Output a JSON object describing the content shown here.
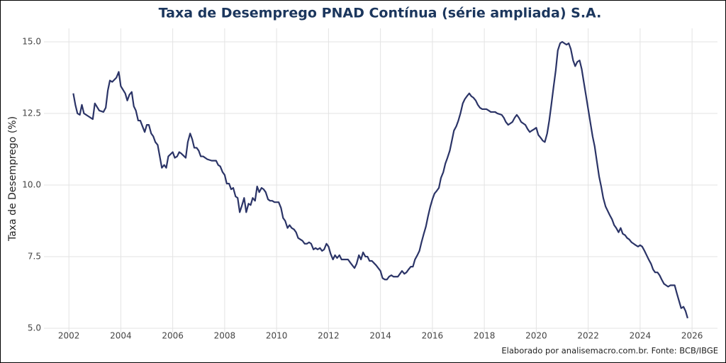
{
  "chart_data": {
    "type": "line",
    "title": "Taxa de Desemprego PNAD Contínua (série ampliada) S.A.",
    "y_label": "Taxa de Desemprego (%)",
    "caption": "Elaborado por analisemacro.com.br. Fonte: BCB/IBGE",
    "x": [
      2002.17,
      2002.25,
      2002.33,
      2002.42,
      2002.5,
      2002.58,
      2002.75,
      2002.92,
      2003.0,
      2003.17,
      2003.33,
      2003.42,
      2003.5,
      2003.58,
      2003.67,
      2003.83,
      2003.92,
      2004.0,
      2004.17,
      2004.25,
      2004.33,
      2004.42,
      2004.5,
      2004.58,
      2004.67,
      2004.75,
      2004.92,
      2005.0,
      2005.08,
      2005.17,
      2005.25,
      2005.33,
      2005.42,
      2005.5,
      2005.58,
      2005.67,
      2005.75,
      2005.83,
      2006.0,
      2006.08,
      2006.17,
      2006.25,
      2006.33,
      2006.5,
      2006.58,
      2006.67,
      2006.75,
      2006.83,
      2006.92,
      2007.0,
      2007.08,
      2007.17,
      2007.33,
      2007.5,
      2007.67,
      2007.75,
      2007.83,
      2007.92,
      2008.0,
      2008.08,
      2008.17,
      2008.25,
      2008.33,
      2008.42,
      2008.5,
      2008.58,
      2008.67,
      2008.75,
      2008.83,
      2008.92,
      2009.0,
      2009.08,
      2009.17,
      2009.25,
      2009.33,
      2009.42,
      2009.5,
      2009.58,
      2009.67,
      2009.75,
      2009.83,
      2009.92,
      2010.0,
      2010.08,
      2010.17,
      2010.25,
      2010.33,
      2010.42,
      2010.5,
      2010.58,
      2010.67,
      2010.75,
      2010.83,
      2011.0,
      2011.08,
      2011.17,
      2011.25,
      2011.33,
      2011.42,
      2011.5,
      2011.58,
      2011.67,
      2011.75,
      2011.83,
      2011.92,
      2012.0,
      2012.08,
      2012.17,
      2012.25,
      2012.33,
      2012.42,
      2012.5,
      2012.67,
      2012.75,
      2012.83,
      2013.0,
      2013.08,
      2013.17,
      2013.25,
      2013.33,
      2013.42,
      2013.5,
      2013.58,
      2013.67,
      2013.83,
      2014.0,
      2014.08,
      2014.17,
      2014.25,
      2014.33,
      2014.42,
      2014.5,
      2014.67,
      2014.75,
      2014.83,
      2014.92,
      2015.0,
      2015.08,
      2015.17,
      2015.25,
      2015.33,
      2015.42,
      2015.5,
      2015.58,
      2015.67,
      2015.75,
      2015.83,
      2015.92,
      2016.0,
      2016.08,
      2016.17,
      2016.25,
      2016.33,
      2016.42,
      2016.5,
      2016.58,
      2016.67,
      2016.75,
      2016.83,
      2016.92,
      2017.0,
      2017.08,
      2017.17,
      2017.25,
      2017.33,
      2017.42,
      2017.5,
      2017.58,
      2017.67,
      2017.75,
      2017.83,
      2017.92,
      2018.0,
      2018.08,
      2018.17,
      2018.25,
      2018.33,
      2018.42,
      2018.5,
      2018.67,
      2018.75,
      2018.83,
      2018.92,
      2019.0,
      2019.08,
      2019.17,
      2019.25,
      2019.33,
      2019.42,
      2019.5,
      2019.58,
      2019.67,
      2019.75,
      2019.83,
      2019.92,
      2020.0,
      2020.08,
      2020.17,
      2020.25,
      2020.33,
      2020.42,
      2020.5,
      2020.58,
      2020.67,
      2020.75,
      2020.83,
      2020.92,
      2021.0,
      2021.08,
      2021.17,
      2021.25,
      2021.33,
      2021.42,
      2021.5,
      2021.58,
      2021.67,
      2021.75,
      2021.83,
      2021.92,
      2022.0,
      2022.08,
      2022.17,
      2022.25,
      2022.33,
      2022.42,
      2022.5,
      2022.58,
      2022.67,
      2022.75,
      2022.83,
      2022.92,
      2023.0,
      2023.08,
      2023.17,
      2023.25,
      2023.33,
      2023.42,
      2023.5,
      2023.58,
      2023.67,
      2023.75,
      2023.83,
      2023.92,
      2024.0,
      2024.08,
      2024.17,
      2024.25,
      2024.33,
      2024.42,
      2024.5,
      2024.58,
      2024.67,
      2024.75,
      2024.83,
      2024.92,
      2025.0,
      2025.08,
      2025.17,
      2025.25,
      2025.33,
      2025.42,
      2025.5,
      2025.58,
      2025.67,
      2025.75,
      2025.83
    ],
    "series": [
      {
        "color": "#2b3467",
        "values": [
          13.2,
          12.8,
          12.5,
          12.45,
          12.8,
          12.5,
          12.4,
          12.3,
          12.85,
          12.6,
          12.55,
          12.7,
          13.3,
          13.65,
          13.6,
          13.75,
          13.95,
          13.45,
          13.2,
          12.95,
          13.15,
          13.25,
          12.75,
          12.6,
          12.25,
          12.25,
          11.85,
          12.1,
          12.1,
          11.8,
          11.7,
          11.5,
          11.4,
          11.0,
          10.6,
          10.7,
          10.6,
          11.0,
          11.15,
          10.95,
          11.0,
          11.15,
          11.1,
          10.95,
          11.5,
          11.8,
          11.6,
          11.3,
          11.3,
          11.2,
          11.0,
          11.0,
          10.9,
          10.85,
          10.85,
          10.7,
          10.65,
          10.45,
          10.35,
          10.05,
          10.05,
          9.85,
          9.9,
          9.6,
          9.55,
          9.05,
          9.3,
          9.55,
          9.05,
          9.35,
          9.3,
          9.55,
          9.45,
          9.95,
          9.75,
          9.9,
          9.85,
          9.75,
          9.5,
          9.45,
          9.45,
          9.4,
          9.4,
          9.4,
          9.2,
          8.85,
          8.75,
          8.5,
          8.6,
          8.5,
          8.45,
          8.35,
          8.15,
          8.05,
          7.95,
          7.95,
          8.0,
          7.95,
          7.75,
          7.8,
          7.75,
          7.8,
          7.7,
          7.75,
          7.95,
          7.85,
          7.6,
          7.4,
          7.55,
          7.45,
          7.55,
          7.4,
          7.4,
          7.4,
          7.3,
          7.1,
          7.25,
          7.55,
          7.4,
          7.65,
          7.5,
          7.5,
          7.35,
          7.35,
          7.2,
          7.0,
          6.75,
          6.7,
          6.7,
          6.8,
          6.85,
          6.8,
          6.8,
          6.9,
          7.0,
          6.9,
          6.95,
          7.05,
          7.15,
          7.15,
          7.4,
          7.55,
          7.7,
          8.0,
          8.3,
          8.55,
          8.9,
          9.25,
          9.5,
          9.7,
          9.8,
          9.9,
          10.25,
          10.45,
          10.75,
          10.95,
          11.2,
          11.55,
          11.9,
          12.05,
          12.25,
          12.5,
          12.85,
          13.0,
          13.1,
          13.2,
          13.1,
          13.05,
          12.95,
          12.8,
          12.7,
          12.65,
          12.65,
          12.65,
          12.6,
          12.55,
          12.55,
          12.55,
          12.5,
          12.45,
          12.35,
          12.2,
          12.1,
          12.15,
          12.2,
          12.35,
          12.45,
          12.35,
          12.2,
          12.15,
          12.1,
          11.95,
          11.85,
          11.9,
          11.95,
          12.0,
          11.75,
          11.65,
          11.55,
          11.5,
          11.8,
          12.25,
          12.8,
          13.45,
          14.0,
          14.7,
          14.95,
          15.0,
          14.95,
          14.9,
          14.95,
          14.75,
          14.35,
          14.15,
          14.3,
          14.35,
          14.05,
          13.6,
          13.1,
          12.65,
          12.2,
          11.7,
          11.35,
          10.85,
          10.3,
          9.95,
          9.55,
          9.25,
          9.1,
          8.95,
          8.8,
          8.6,
          8.5,
          8.35,
          8.5,
          8.3,
          8.25,
          8.15,
          8.1,
          8.0,
          7.95,
          7.9,
          7.85,
          7.9,
          7.85,
          7.7,
          7.55,
          7.4,
          7.25,
          7.05,
          6.95,
          6.95,
          6.85,
          6.7,
          6.55,
          6.5,
          6.45,
          6.5,
          6.5,
          6.5,
          6.2,
          5.95,
          5.7,
          5.75,
          5.6,
          5.35
        ]
      }
    ],
    "xlim": [
      2001.04,
      2026.98
    ],
    "xticks": [
      2002,
      2004,
      2006,
      2008,
      2010,
      2012,
      2014,
      2016,
      2018,
      2020,
      2022,
      2024,
      2026
    ],
    "ylim": [
      4.85,
      15.47
    ],
    "yticks": [
      {
        "value": 5,
        "label": "5.0"
      },
      7.5,
      {
        "value": 10,
        "label": "10.0"
      },
      12.5,
      {
        "value": 15,
        "label": "15.0"
      }
    ],
    "grid": true
  }
}
